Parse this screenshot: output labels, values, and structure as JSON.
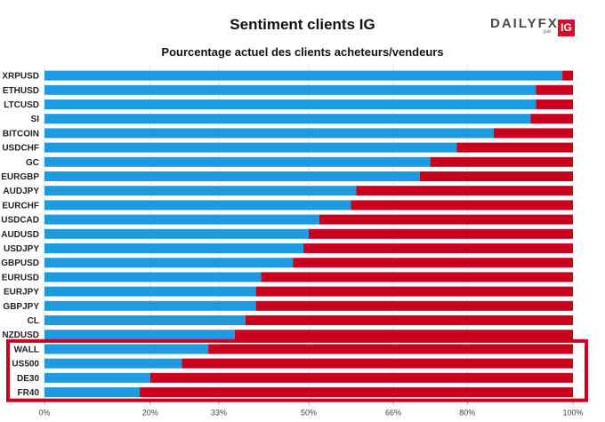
{
  "chart_data": {
    "type": "bar",
    "stacked": true,
    "orientation": "horizontal",
    "title": "Sentiment clients IG",
    "subtitle": "Pourcentage actuel des clients acheteurs/vendeurs",
    "categories": [
      "XRPUSD",
      "ETHUSD",
      "LTCUSD",
      "SI",
      "BITCOIN",
      "USDCHF",
      "GC",
      "EURGBP",
      "AUDJPY",
      "EURCHF",
      "USDCAD",
      "AUDUSD",
      "USDJPY",
      "GBPUSD",
      "EURUSD",
      "EURJPY",
      "GBPJPY",
      "CL",
      "NZDUSD",
      "WALL",
      "US500",
      "DE30",
      "FR40"
    ],
    "series": [
      {
        "values": [
          98,
          93,
          93,
          92,
          85,
          78,
          73,
          71,
          59,
          58,
          52,
          50,
          49,
          47,
          41,
          40,
          40,
          38,
          36,
          31,
          26,
          20,
          18
        ]
      },
      {
        "values": [
          2,
          7,
          7,
          8,
          15,
          22,
          27,
          29,
          41,
          42,
          48,
          50,
          51,
          53,
          59,
          60,
          60,
          62,
          64,
          69,
          74,
          80,
          82
        ]
      }
    ],
    "xlim": [
      0,
      100
    ],
    "x_ticks": [
      0,
      20,
      33,
      50,
      66,
      80,
      100
    ],
    "x_tick_labels": [
      "0%",
      "20%",
      "33%",
      "50%",
      "66%",
      "80%",
      "100%"
    ],
    "highlighted_categories": [
      "WALL",
      "US500",
      "DE30",
      "FR40"
    ],
    "colors": {
      "long": "#1e9be0",
      "short": "#c8001e",
      "highlight_box": "#c8001e"
    },
    "grid": true
  },
  "logo": {
    "brand": "DAILYFX",
    "par": "par",
    "ig": "IG"
  }
}
